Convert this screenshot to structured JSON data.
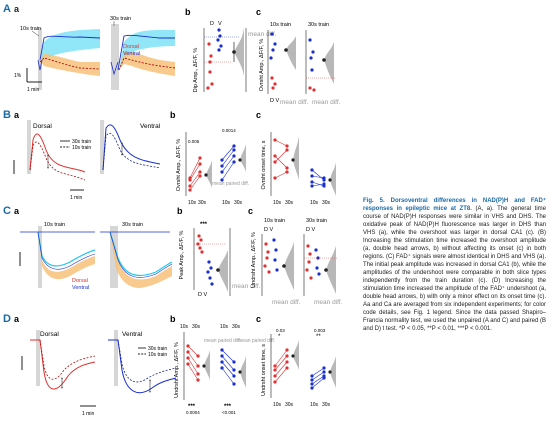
{
  "colors": {
    "blue": "#1a2fd0",
    "red": "#e03030",
    "cyan": "#1ec8ee",
    "orange": "#f2a13a",
    "navy": "#1a2a8c",
    "darkred": "#b00e0e",
    "grey": "#9a9a9a",
    "stim": "#cfcfcf",
    "label_blue": "#1a6aa6"
  },
  "panels": {
    "A": {
      "letter": "A",
      "a": "a",
      "b": "b",
      "c": "c"
    },
    "B": {
      "letter": "B",
      "a": "a",
      "b": "b",
      "c": "c"
    },
    "C": {
      "letter": "C",
      "a": "a",
      "b": "b",
      "c": "c"
    },
    "D": {
      "letter": "D",
      "a": "a",
      "b": "b",
      "c": "c"
    }
  },
  "labels": {
    "train10": "10s train",
    "train30": "30s train",
    "dorsal": "Dorsal",
    "ventral": "Ventral",
    "D": "D",
    "V": "V",
    "mean_diff": "mean diff.",
    "mean_paired_diff": "mean paired diff.",
    "one_min": "1 min",
    "scale_1pct": "1%",
    "x10s": "10s",
    "x30s": "30s",
    "dip_amp_y": "Dip Amp., ΔF/F, %",
    "overshoot_amp_y": "Ovrsht Amp., ΔF/F, %",
    "overshoot_onset_y": "Ovrsht onset time, s",
    "peak_amp_y": "Peak Amp., ΔF/F, %",
    "undershoot_amp_y": "Undrsht Amp., ΔF/F, %",
    "undershoot_onset_y": "Undrsht onset time, s",
    "p_B_b_1": "0.005",
    "p_B_b_2": "0.0014",
    "p_C_b": "***",
    "p_D_b_1": "***",
    "p_D_b_2": "***",
    "p_D_b_1v": "0.0004",
    "p_D_b_2v": "<0.001",
    "p_D_c_1": "0.03",
    "p_D_c_2": "0.003",
    "star": "*",
    "star2": "**"
  },
  "caption": {
    "label": "Fig. 5.",
    "title": "Dorsoventral differences in NAD(P)H and FAD⁺ responses in epileptic mice at ZT8.",
    "body": "(A, a). The general time course of NAD(P)H responses were similar in VHS and DHS. The oxidative peak of NAD(P)H fluorescence was larger in DHS than VHS (a), while the overshoot was larger in dorsal CA1 (c). (B) Increasing the stimulation time increased the overshoot amplitude (a, double head arrows, b) without affecting its onset (c) in both regions. (C) FAD⁺ signals were almost identical in DHS and VHS (a). The initial peak amplitude was increased in dorsal CA1 (b), while the amplitudes of the undershoot were comparable in both slice types independently from the train duration (c). (D) Increasing the stimulation time increased the amplitude of the FAD⁺ undershoot (a, double head arrows, b) with only a minor effect on its onset time (c). Aa and Ca are averaged from six independent experiments; for color code details, see Fig. 1 legend. Since the data passed Shapiro–Francia normality test, we used the unpaired (A and C) and paired (B and D) t test. *P < 0.05, **P < 0.01, ***P < 0.001."
  }
}
